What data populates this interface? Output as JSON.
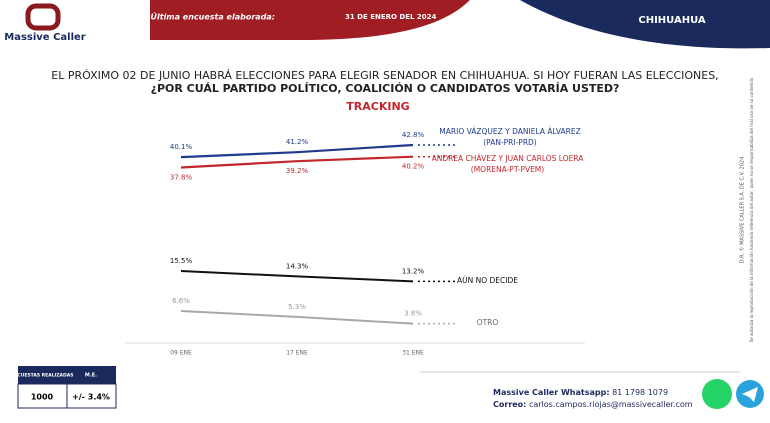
{
  "header": {
    "brand": "Massive Caller",
    "last_survey_label": "Última encuesta elaborada:",
    "last_survey_date": "31 DE ENERO DEL 2024",
    "region": "CHIHUAHUA"
  },
  "chart_data": {
    "type": "line",
    "title": "EL PRÓXIMO 02 DE JUNIO HABRÁ ELECCIONES PARA ELEGIR SENADOR EN CHIHUAHUA. SI HOY FUERAN LAS ELECCIONES,",
    "title_bold": "¿POR CUÁL PARTIDO POLÍTICO, COALICIÓN O CANDIDATOS VOTARÍA USTED?",
    "subtitle": "TRACKING",
    "categories": [
      "09 ENE",
      "17 ENE",
      "31 ENE"
    ],
    "series": [
      {
        "name": "MARIO VÁZQUEZ Y DANIELA ÁLVAREZ (PAN-PRI-PRD)",
        "color": "#1f3b8c",
        "values": [
          40.1,
          41.2,
          42.8
        ],
        "value_labels": [
          "40.1%",
          "41.2%",
          "42.8%"
        ]
      },
      {
        "name": "ANDREA CHÁVEZ Y JUAN CARLOS LOERA (MORENA-PT-PVEM)",
        "color": "#c1272d",
        "values": [
          37.8,
          39.2,
          40.2
        ],
        "value_labels": [
          "37.8%",
          "39.2%",
          "40.2%"
        ]
      },
      {
        "name": "AÚN NO DECIDE",
        "color": "#111111",
        "values": [
          15.5,
          14.3,
          13.2
        ],
        "value_labels": [
          "15.5%",
          "14.3%",
          "13.2%"
        ]
      },
      {
        "name": "OTRO",
        "color": "#a8a8a8",
        "values": [
          6.6,
          5.3,
          3.8
        ],
        "value_labels": [
          "6.6%",
          "5.3%",
          "3.8%"
        ]
      }
    ]
  },
  "table": {
    "headers": [
      "ENCUESTAS REALIZADAS",
      "M.E."
    ],
    "row": [
      "1000",
      "+/- 3.4%"
    ]
  },
  "footer": {
    "whatsapp_label": "Massive Caller Whatsapp:",
    "whatsapp": "81 1798 1079",
    "email_label": "Correo:",
    "email": "carlos.campos.riojas@massivecaller.com"
  },
  "side": {
    "copyright": "D.R. © MASSIVE CALLER S.A. DE C.V. 2024",
    "notice": "Se autoriza la reproducción de la información haciendo referencia del autor, quien no se responsabiliza del mal uso de su contenido"
  }
}
